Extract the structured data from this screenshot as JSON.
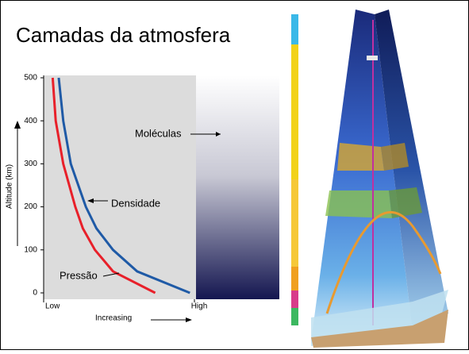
{
  "chart_data": {
    "type": "line",
    "title": "Camadas da atmosfera",
    "y_label": "Altitude (km)",
    "x_label": "Increasing",
    "annotation": "Moléculas",
    "xlim": [
      0,
      100
    ],
    "xticks": [
      {
        "value": 0,
        "label": "Low"
      },
      {
        "value": 100,
        "label": "High"
      }
    ],
    "ylim": [
      0,
      500
    ],
    "yticks": [
      0,
      100,
      200,
      300,
      400,
      500
    ],
    "y": [
      500,
      400,
      300,
      200,
      150,
      100,
      50,
      0
    ],
    "series": [
      {
        "name": "Pressão",
        "color": "#e8202a",
        "values": [
          6,
          8,
          13,
          21,
          26,
          34,
          46,
          74
        ]
      },
      {
        "name": "Densidade",
        "color": "#1f5aa6",
        "values": [
          10,
          13,
          18,
          28,
          35,
          46,
          62,
          97
        ]
      }
    ]
  }
}
